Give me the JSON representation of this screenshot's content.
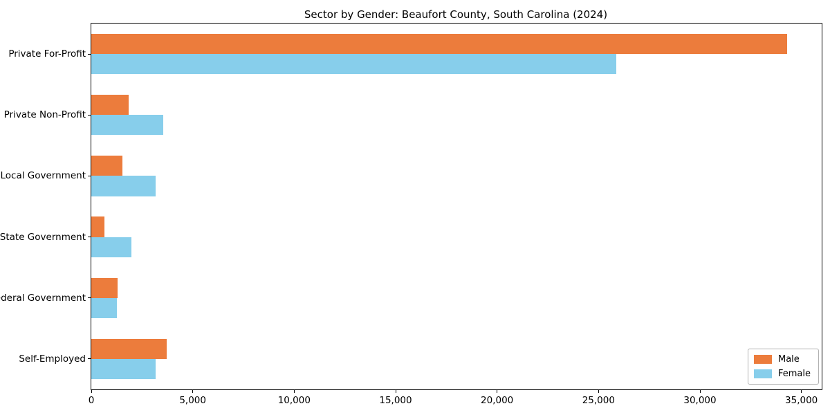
{
  "chart_data": {
    "type": "bar",
    "orientation": "horizontal",
    "title": "Sector by Gender: Beaufort County, South Carolina (2024)",
    "categories": [
      "Private For-Profit",
      "Private Non-Profit",
      "Local Government",
      "State Government",
      "Federal Government",
      "Self-Employed"
    ],
    "series": [
      {
        "name": "Male",
        "color": "#EC7C3C",
        "values": [
          34280,
          1850,
          1540,
          650,
          1300,
          3720
        ]
      },
      {
        "name": "Female",
        "color": "#87CEEB",
        "values": [
          25880,
          3550,
          3180,
          1980,
          1270,
          3180
        ]
      }
    ],
    "xlim": [
      0,
      36000
    ],
    "xticks": [
      0,
      5000,
      10000,
      15000,
      20000,
      25000,
      30000,
      35000
    ],
    "xtick_labels": [
      "0",
      "5,000",
      "10,000",
      "15,000",
      "20,000",
      "25,000",
      "30,000",
      "35,000"
    ],
    "ylabel": "",
    "xlabel": "",
    "grid": false,
    "legend": {
      "position": "lower right",
      "entries": [
        "Male",
        "Female"
      ]
    },
    "colors": {
      "background": "#ffffff",
      "spine": "#000000",
      "text": "#000000",
      "legend_border": "#b0b0b0"
    }
  }
}
